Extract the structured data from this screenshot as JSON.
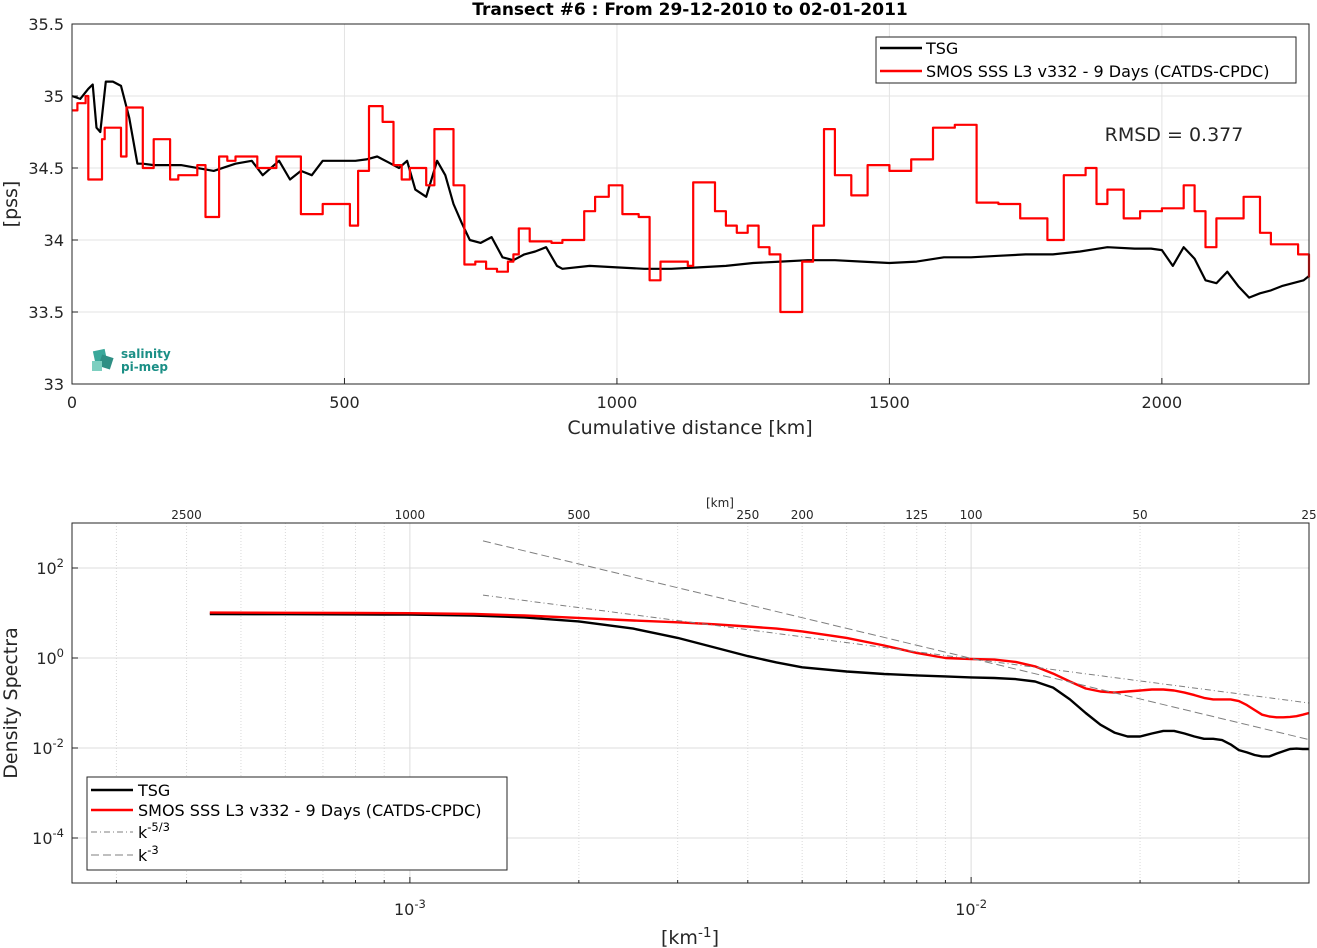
{
  "chart_data": [
    {
      "type": "line",
      "title": "Transect #6 : From 29-12-2010 to 02-01-2011",
      "xlabel": "Cumulative distance [km]",
      "ylabel": "[pss]",
      "xlim": [
        0,
        2270
      ],
      "ylim": [
        33,
        35.5
      ],
      "xticks": [
        "0",
        "500",
        "1000",
        "1500",
        "2000"
      ],
      "yticks": [
        "33",
        "33.5",
        "34",
        "34.5",
        "35",
        "35.5"
      ],
      "grid": true,
      "legend_position": "top-right",
      "annotation": "RMSD = 0.377",
      "logo": "salinity pi-mep",
      "series": [
        {
          "name": "TSG",
          "color": "#000000",
          "x": [
            0,
            15,
            30,
            38,
            45,
            52,
            62,
            75,
            90,
            105,
            120,
            130,
            150,
            200,
            260,
            300,
            330,
            350,
            380,
            400,
            420,
            440,
            460,
            480,
            500,
            520,
            540,
            560,
            580,
            600,
            615,
            630,
            650,
            670,
            685,
            700,
            715,
            730,
            750,
            770,
            790,
            810,
            830,
            850,
            870,
            890,
            900,
            950,
            1000,
            1050,
            1100,
            1150,
            1200,
            1250,
            1300,
            1350,
            1400,
            1450,
            1500,
            1550,
            1600,
            1650,
            1700,
            1750,
            1800,
            1850,
            1900,
            1950,
            1980,
            2000,
            2020,
            2040,
            2060,
            2080,
            2100,
            2120,
            2140,
            2160,
            2180,
            2200,
            2220,
            2240,
            2260,
            2270
          ],
          "y": [
            35.0,
            34.98,
            35.05,
            35.08,
            34.78,
            34.75,
            35.1,
            35.1,
            35.07,
            34.85,
            34.53,
            34.53,
            34.52,
            34.52,
            34.48,
            34.53,
            34.55,
            34.45,
            34.55,
            34.42,
            34.48,
            34.45,
            34.55,
            34.55,
            34.55,
            34.55,
            34.56,
            34.58,
            34.54,
            34.5,
            34.55,
            34.35,
            34.3,
            34.55,
            34.45,
            34.25,
            34.12,
            34.0,
            33.98,
            34.02,
            33.88,
            33.86,
            33.9,
            33.92,
            33.95,
            33.82,
            33.8,
            33.82,
            33.81,
            33.8,
            33.8,
            33.81,
            33.82,
            33.84,
            33.85,
            33.86,
            33.86,
            33.85,
            33.84,
            33.85,
            33.88,
            33.88,
            33.89,
            33.9,
            33.9,
            33.92,
            33.95,
            33.94,
            33.94,
            33.93,
            33.82,
            33.95,
            33.87,
            33.72,
            33.7,
            33.78,
            33.68,
            33.6,
            33.63,
            33.65,
            33.68,
            33.7,
            33.72,
            33.75
          ]
        },
        {
          "name": "SMOS SSS L3 v332 - 9 Days (CATDS-CPDC)",
          "color": "#ff0000",
          "x": [
            0,
            10,
            25,
            30,
            55,
            60,
            90,
            100,
            130,
            150,
            180,
            195,
            230,
            245,
            270,
            285,
            300,
            325,
            340,
            375,
            420,
            460,
            490,
            510,
            525,
            545,
            570,
            590,
            605,
            620,
            635,
            650,
            665,
            700,
            720,
            740,
            760,
            780,
            800,
            810,
            820,
            830,
            840,
            880,
            900,
            940,
            960,
            985,
            1010,
            1040,
            1060,
            1080,
            1130,
            1140,
            1180,
            1200,
            1220,
            1240,
            1260,
            1280,
            1300,
            1320,
            1340,
            1360,
            1380,
            1400,
            1430,
            1460,
            1500,
            1540,
            1580,
            1620,
            1660,
            1700,
            1740,
            1790,
            1820,
            1860,
            1880,
            1900,
            1930,
            1960,
            2000,
            2040,
            2060,
            2080,
            2100,
            2150,
            2180,
            2200,
            2220,
            2250,
            2270
          ],
          "y": [
            34.9,
            34.95,
            35.0,
            34.42,
            34.7,
            34.78,
            34.58,
            34.92,
            34.5,
            34.7,
            34.42,
            34.45,
            34.52,
            34.16,
            34.58,
            34.55,
            34.58,
            34.58,
            34.5,
            34.58,
            34.18,
            34.25,
            34.25,
            34.1,
            34.48,
            34.93,
            34.82,
            34.52,
            34.42,
            34.5,
            34.5,
            34.38,
            34.77,
            34.38,
            33.83,
            33.85,
            33.8,
            33.78,
            33.85,
            33.9,
            34.08,
            34.08,
            33.99,
            33.98,
            34.0,
            34.2,
            34.3,
            34.38,
            34.18,
            34.16,
            33.72,
            33.85,
            33.82,
            34.4,
            34.2,
            34.1,
            34.05,
            34.1,
            33.95,
            33.9,
            33.5,
            33.5,
            33.85,
            34.1,
            34.77,
            34.45,
            34.31,
            34.52,
            34.48,
            34.56,
            34.78,
            34.8,
            34.26,
            34.25,
            34.15,
            34.0,
            34.45,
            34.5,
            34.25,
            34.35,
            34.15,
            34.2,
            34.22,
            34.38,
            34.2,
            33.95,
            34.15,
            34.3,
            34.05,
            33.97,
            33.97,
            33.9,
            33.74
          ]
        }
      ]
    },
    {
      "type": "line",
      "title": "",
      "xlabel": "[km-1]",
      "ylabel": "Density Spectra",
      "xscale": "log",
      "yscale": "log",
      "xlim": [
        0.00025,
        0.04
      ],
      "ylim": [
        1e-05,
        1000
      ],
      "xticks": [
        "10-3",
        "10-2"
      ],
      "yticks": [
        "10-4",
        "10-2",
        "100",
        "102"
      ],
      "top_axis_label": "[km]",
      "top_ticks": [
        "2500",
        "1000",
        "500",
        "250",
        "200",
        "125",
        "100",
        "50",
        "25"
      ],
      "grid": true,
      "legend_position": "bottom-left",
      "series": [
        {
          "name": "TSG",
          "color": "#000000",
          "x": [
            0.00044,
            0.0006,
            0.0008,
            0.001,
            0.0013,
            0.0016,
            0.002,
            0.0025,
            0.003,
            0.0035,
            0.004,
            0.0045,
            0.005,
            0.006,
            0.007,
            0.008,
            0.009,
            0.01,
            0.011,
            0.012,
            0.013,
            0.014,
            0.015,
            0.016,
            0.017,
            0.018,
            0.019,
            0.02,
            0.021,
            0.022,
            0.023,
            0.024,
            0.025,
            0.026,
            0.027,
            0.028,
            0.029,
            0.03,
            0.031,
            0.032,
            0.033,
            0.034,
            0.035,
            0.036,
            0.037,
            0.038,
            0.039,
            0.04
          ],
          "y": [
            9.5,
            9.4,
            9.3,
            9.2,
            8.8,
            8.0,
            6.5,
            4.5,
            2.8,
            1.7,
            1.1,
            0.8,
            0.62,
            0.5,
            0.44,
            0.41,
            0.39,
            0.37,
            0.36,
            0.34,
            0.3,
            0.22,
            0.12,
            0.06,
            0.033,
            0.022,
            0.018,
            0.018,
            0.021,
            0.024,
            0.024,
            0.021,
            0.018,
            0.016,
            0.016,
            0.015,
            0.012,
            0.009,
            0.008,
            0.007,
            0.0065,
            0.0065,
            0.0075,
            0.0085,
            0.0095,
            0.0097,
            0.0095,
            0.0095
          ]
        },
        {
          "name": "SMOS SSS L3 v332 - 9 Days (CATDS-CPDC)",
          "color": "#ff0000",
          "x": [
            0.00044,
            0.0006,
            0.0008,
            0.001,
            0.0013,
            0.0016,
            0.002,
            0.0025,
            0.003,
            0.0035,
            0.004,
            0.0045,
            0.005,
            0.006,
            0.007,
            0.008,
            0.009,
            0.01,
            0.011,
            0.012,
            0.013,
            0.014,
            0.015,
            0.016,
            0.017,
            0.018,
            0.019,
            0.02,
            0.021,
            0.022,
            0.023,
            0.024,
            0.025,
            0.026,
            0.027,
            0.028,
            0.029,
            0.03,
            0.031,
            0.032,
            0.033,
            0.034,
            0.035,
            0.036,
            0.037,
            0.038,
            0.039,
            0.04
          ],
          "y": [
            10.2,
            10.1,
            10.0,
            9.9,
            9.5,
            8.8,
            7.8,
            6.8,
            6.2,
            5.6,
            5.0,
            4.5,
            3.9,
            2.8,
            1.9,
            1.3,
            1.0,
            0.95,
            0.92,
            0.82,
            0.65,
            0.45,
            0.3,
            0.21,
            0.18,
            0.17,
            0.18,
            0.19,
            0.2,
            0.2,
            0.19,
            0.17,
            0.15,
            0.13,
            0.12,
            0.12,
            0.12,
            0.11,
            0.09,
            0.07,
            0.055,
            0.05,
            0.048,
            0.048,
            0.049,
            0.051,
            0.055,
            0.06
          ]
        },
        {
          "name": "k-5/3",
          "color": "#7f7f7f",
          "dash": "dashdot",
          "x": [
            0.00135,
            0.04
          ],
          "y": [
            25.0,
            0.1
          ]
        },
        {
          "name": "k-3",
          "color": "#7f7f7f",
          "dash": "dashed",
          "x": [
            0.00135,
            0.04
          ],
          "y": [
            400.0,
            0.0154
          ]
        }
      ]
    }
  ]
}
